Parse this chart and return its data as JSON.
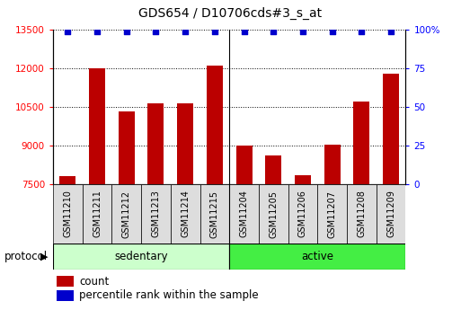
{
  "title": "GDS654 / D10706cds#3_s_at",
  "samples": [
    "GSM11210",
    "GSM11211",
    "GSM11212",
    "GSM11213",
    "GSM11214",
    "GSM11215",
    "GSM11204",
    "GSM11205",
    "GSM11206",
    "GSM11207",
    "GSM11208",
    "GSM11209"
  ],
  "counts": [
    7820,
    11980,
    10340,
    10640,
    10630,
    12100,
    9020,
    8620,
    7870,
    9050,
    10700,
    11780
  ],
  "groups": [
    "sedentary",
    "sedentary",
    "sedentary",
    "sedentary",
    "sedentary",
    "sedentary",
    "active",
    "active",
    "active",
    "active",
    "active",
    "active"
  ],
  "bar_color": "#bb0000",
  "dot_color": "#0000cc",
  "ylim_left": [
    7500,
    13500
  ],
  "ylim_right": [
    0,
    100
  ],
  "yticks_left": [
    7500,
    9000,
    10500,
    12000,
    13500
  ],
  "yticks_right": [
    0,
    25,
    50,
    75,
    100
  ],
  "ytick_labels_right": [
    "0",
    "25",
    "50",
    "75",
    "100%"
  ],
  "grid_color": "#000000",
  "title_fontsize": 10,
  "tick_fontsize": 7.5,
  "label_fontsize": 8.5,
  "protocol_label": "protocol",
  "legend_count_label": "count",
  "legend_pct_label": "percentile rank within the sample",
  "sedentary_color": "#ccffcc",
  "active_color": "#44ee44",
  "xtick_bg_color": "#dddddd",
  "n_sedentary": 6,
  "n_active": 6
}
